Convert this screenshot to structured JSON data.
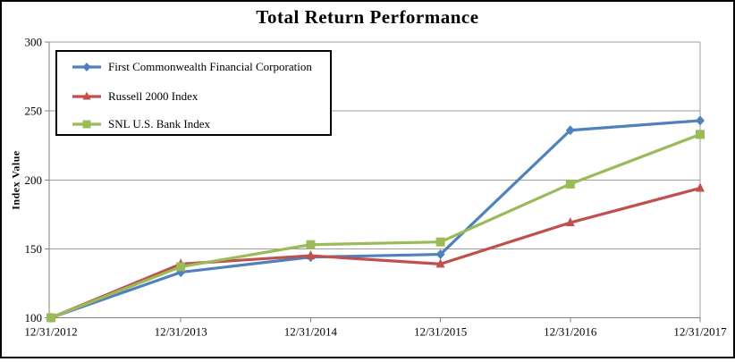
{
  "chart_data": {
    "type": "line",
    "title": "Total Return Performance",
    "xlabel": "",
    "ylabel": "Index Value",
    "categories": [
      "12/31/2012",
      "12/31/2013",
      "12/31/2014",
      "12/31/2015",
      "12/31/2016",
      "12/31/2017"
    ],
    "series": [
      {
        "name": "First Commonwealth Financial Corporation",
        "color": "#4F81BD",
        "marker": "diamond",
        "values": [
          100,
          133,
          144,
          146,
          236,
          243
        ]
      },
      {
        "name": "Russell 2000 Index",
        "color": "#C0504D",
        "marker": "triangle",
        "values": [
          100,
          139,
          145,
          139,
          169,
          194
        ]
      },
      {
        "name": "SNL U.S. Bank Index",
        "color": "#9BBB59",
        "marker": "square",
        "values": [
          100,
          137,
          153,
          155,
          197,
          233
        ]
      }
    ],
    "ylim": [
      100,
      300
    ],
    "yticks": [
      100,
      150,
      200,
      250,
      300
    ],
    "grid": "horizontal-major",
    "legend_position": "top-left-inside",
    "colors": {
      "gridline": "#9C9C9C",
      "axis": "#808080",
      "background": "#FFFFFF",
      "border": "#000000",
      "text": "#000000"
    }
  }
}
